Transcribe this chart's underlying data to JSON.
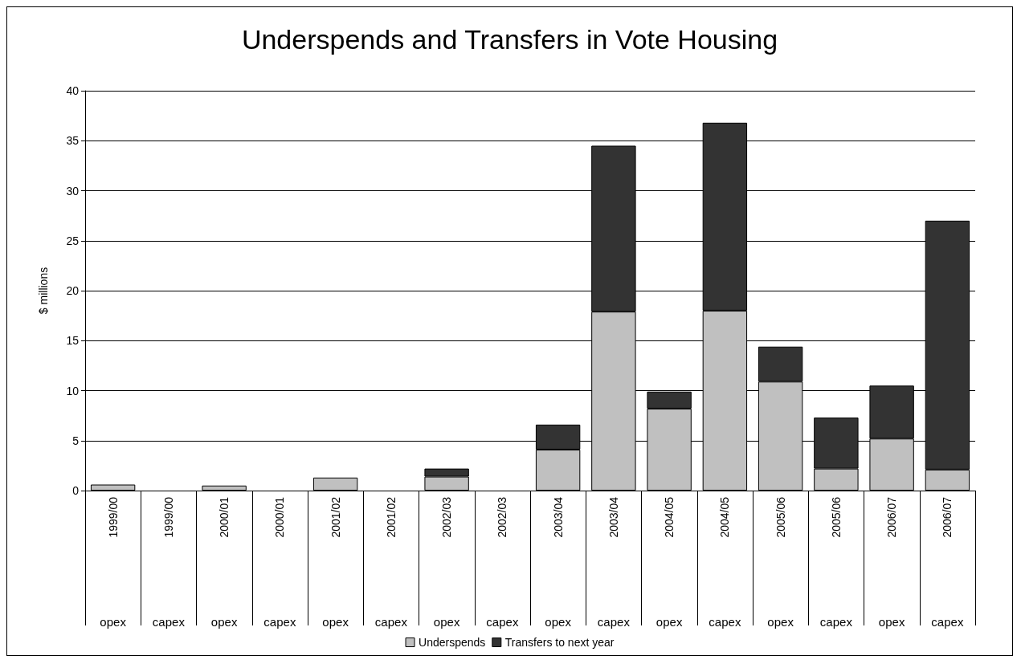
{
  "chart_data": {
    "type": "bar",
    "title": "Underspends and Transfers in Vote Housing",
    "ylabel": "$ millions",
    "categories": [
      "1999/00 opex",
      "1999/00 capex",
      "2000/01 opex",
      "2000/01 capex",
      "2001/02 opex",
      "2001/02 capex",
      "2002/03 opex",
      "2002/03 capex",
      "2003/04 opex",
      "2003/04 capex",
      "2004/05 opex",
      "2004/05 capex",
      "2005/06 opex",
      "2005/06 capex",
      "2006/07 opex",
      "2006/07 capex"
    ],
    "stacked": true,
    "series": [
      {
        "name": "Underspends",
        "color": "#c0c0c0",
        "values": [
          0.6,
          null,
          0.5,
          null,
          1.3,
          null,
          1.4,
          null,
          4.1,
          17.9,
          8.2,
          18.0,
          10.9,
          2.2,
          5.2,
          2.1
        ]
      },
      {
        "name": "Transfers to next year",
        "color": "#333333",
        "values": [
          null,
          null,
          null,
          null,
          null,
          null,
          0.8,
          null,
          2.5,
          16.6,
          1.7,
          18.8,
          3.5,
          5.1,
          5.3,
          24.9
        ]
      }
    ],
    "ylim": [
      0,
      40
    ],
    "yticks": [
      0,
      5,
      10,
      15,
      20,
      25,
      30,
      35,
      40
    ],
    "grid": "y",
    "legend": "bottom"
  }
}
